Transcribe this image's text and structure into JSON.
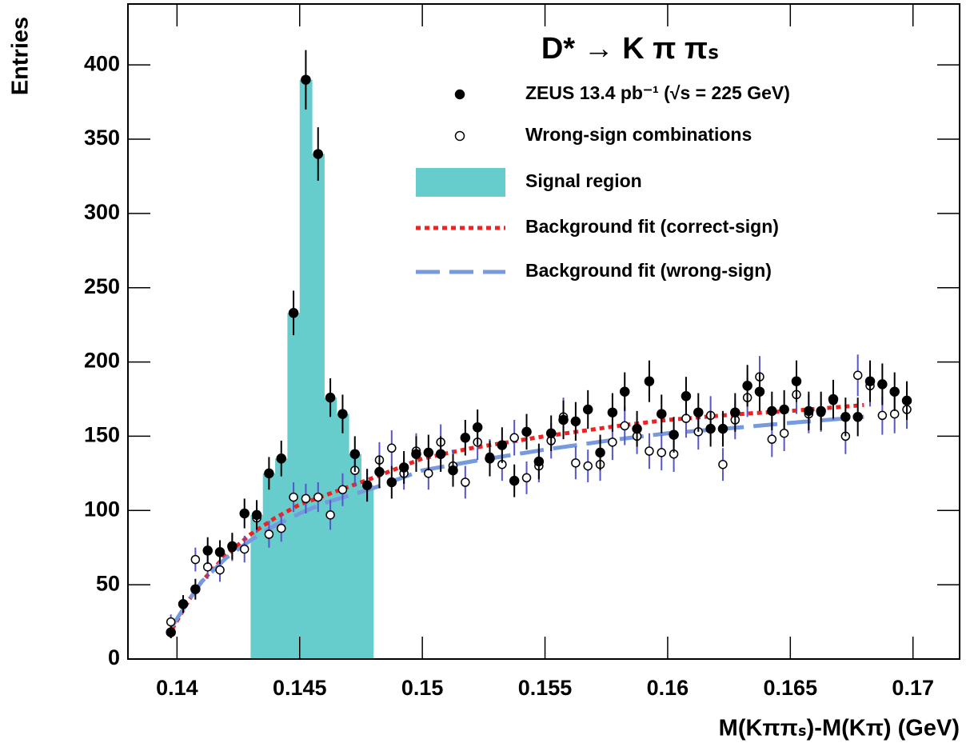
{
  "chart_data": {
    "type": "scatter",
    "title": "D* → K π πₛ",
    "x_label": "M(Kππₛ)-M(Kπ) (GeV)",
    "y_label": "Entries",
    "xlim": [
      0.138,
      0.1719
    ],
    "ylim": [
      0,
      441
    ],
    "xticks": [
      0.14,
      0.145,
      0.15,
      0.155,
      0.16,
      0.165,
      0.17
    ],
    "yticks": [
      0,
      50,
      100,
      150,
      200,
      250,
      300,
      350,
      400
    ],
    "x": [
      0.13975,
      0.14025,
      0.14075,
      0.14125,
      0.14175,
      0.14225,
      0.14275,
      0.14325,
      0.14375,
      0.14425,
      0.14475,
      0.14525,
      0.14575,
      0.14625,
      0.14675,
      0.14725,
      0.14775,
      0.14825,
      0.14875,
      0.14925,
      0.14975,
      0.15025,
      0.15075,
      0.15125,
      0.15175,
      0.15225,
      0.15275,
      0.15325,
      0.15375,
      0.15425,
      0.15475,
      0.15525,
      0.15575,
      0.15625,
      0.15675,
      0.15725,
      0.15775,
      0.15825,
      0.15875,
      0.15925,
      0.15975,
      0.16025,
      0.16075,
      0.16125,
      0.16175,
      0.16225,
      0.16275,
      0.16325,
      0.16375,
      0.16425,
      0.16475,
      0.16525,
      0.16575,
      0.16625,
      0.16675,
      0.16725,
      0.16775,
      0.16825,
      0.16875,
      0.16925,
      0.16975
    ],
    "series": [
      {
        "name": "ZEUS 13.4 pb⁻¹ (√s = 225 GeV)",
        "color": "#000000",
        "marker": "filled",
        "error_color": "#000000",
        "values": [
          18,
          37,
          47,
          73,
          72,
          76,
          98,
          97,
          125,
          135,
          233,
          390,
          340,
          176,
          165,
          138,
          117,
          126,
          119,
          129,
          138,
          139,
          138,
          127,
          149,
          156,
          135,
          144,
          120,
          153,
          133,
          152,
          161,
          160,
          168,
          139,
          166,
          180,
          155,
          187,
          165,
          151,
          177,
          166,
          155,
          155,
          166,
          184,
          180,
          167,
          168,
          187,
          167,
          167,
          175,
          163,
          163,
          187,
          185,
          180,
          174
        ],
        "errors": [
          4,
          6,
          7,
          9,
          8,
          9,
          10,
          10,
          11,
          12,
          15,
          20,
          18,
          13,
          13,
          12,
          11,
          11,
          11,
          11,
          12,
          12,
          12,
          11,
          12,
          12,
          12,
          12,
          11,
          12,
          12,
          12,
          13,
          13,
          13,
          12,
          13,
          13,
          12,
          14,
          13,
          12,
          13,
          13,
          12,
          12,
          13,
          14,
          13,
          13,
          13,
          14,
          13,
          13,
          13,
          13,
          13,
          14,
          14,
          13,
          13
        ]
      },
      {
        "name": "Wrong-sign combinations",
        "color": "#000000",
        "marker": "open",
        "error_color": "#5555cc",
        "values": [
          25,
          37,
          67,
          62,
          60,
          75,
          74,
          95,
          84,
          88,
          109,
          108,
          109,
          97,
          114,
          127,
          117,
          134,
          142,
          125,
          140,
          125,
          146,
          130,
          119,
          146,
          136,
          131,
          149,
          122,
          130,
          147,
          163,
          132,
          130,
          131,
          146,
          157,
          150,
          140,
          139,
          138,
          162,
          153,
          164,
          131,
          161,
          176,
          190,
          148,
          152,
          178,
          165,
          166,
          174,
          150,
          191,
          184,
          164,
          165,
          168
        ],
        "errors": [
          5,
          6,
          8,
          8,
          8,
          9,
          9,
          10,
          9,
          9,
          10,
          10,
          10,
          10,
          11,
          11,
          11,
          12,
          12,
          11,
          12,
          11,
          12,
          11,
          11,
          12,
          12,
          11,
          12,
          11,
          11,
          12,
          13,
          11,
          11,
          11,
          12,
          13,
          12,
          12,
          12,
          12,
          13,
          12,
          13,
          11,
          13,
          13,
          14,
          12,
          12,
          13,
          13,
          13,
          13,
          12,
          14,
          14,
          13,
          13,
          13
        ]
      }
    ],
    "signal_region": {
      "name": "Signal region",
      "color": "#66cccc",
      "range": [
        0.143,
        0.148
      ]
    },
    "fits": [
      {
        "name": "Background fit (correct-sign)",
        "color": "#ee2222",
        "dash": "dotted",
        "x": [
          0.1398,
          0.1405,
          0.141,
          0.142,
          0.143,
          0.144,
          0.145,
          0.146,
          0.148,
          0.15,
          0.152,
          0.155,
          0.158,
          0.16,
          0.163,
          0.165,
          0.168
        ],
        "values": [
          20,
          40,
          52,
          70,
          84,
          95,
          104,
          110,
          122,
          135,
          142,
          150,
          157,
          161,
          165,
          167,
          171
        ]
      },
      {
        "name": "Background fit (wrong-sign)",
        "color": "#7799dd",
        "dash": "dashed",
        "x": [
          0.1398,
          0.1405,
          0.141,
          0.142,
          0.143,
          0.144,
          0.145,
          0.146,
          0.148,
          0.15,
          0.152,
          0.155,
          0.158,
          0.16,
          0.163,
          0.165,
          0.168
        ],
        "values": [
          22,
          40,
          52,
          68,
          80,
          90,
          98,
          105,
          115,
          127,
          133,
          141,
          148,
          152,
          156,
          159,
          163
        ]
      }
    ]
  }
}
